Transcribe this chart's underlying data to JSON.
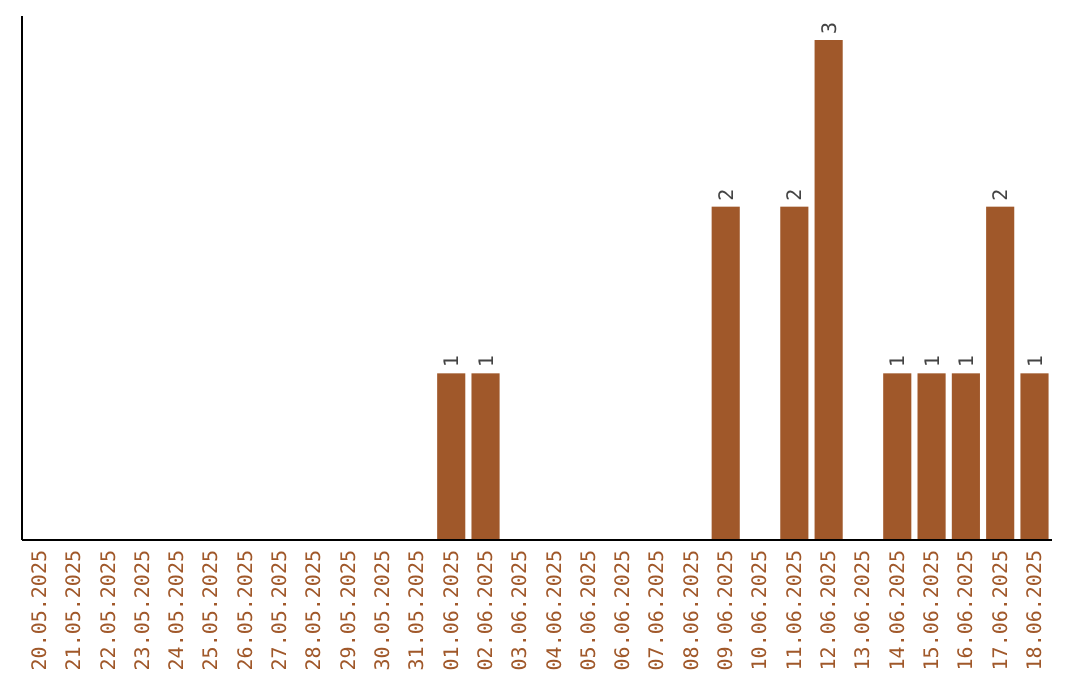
{
  "chart_data": {
    "type": "bar",
    "categories": [
      "20.05.2025",
      "21.05.2025",
      "22.05.2025",
      "23.05.2025",
      "24.05.2025",
      "25.05.2025",
      "26.05.2025",
      "27.05.2025",
      "28.05.2025",
      "29.05.2025",
      "30.05.2025",
      "31.05.2025",
      "01.06.2025",
      "02.06.2025",
      "03.06.2025",
      "04.06.2025",
      "05.06.2025",
      "06.06.2025",
      "07.06.2025",
      "08.06.2025",
      "09.06.2025",
      "10.06.2025",
      "11.06.2025",
      "12.06.2025",
      "13.06.2025",
      "14.06.2025",
      "15.06.2025",
      "16.06.2025",
      "17.06.2025",
      "18.06.2025"
    ],
    "values": [
      null,
      null,
      null,
      null,
      null,
      null,
      null,
      null,
      null,
      null,
      null,
      null,
      1,
      1,
      null,
      null,
      null,
      null,
      null,
      null,
      2,
      null,
      2,
      3,
      null,
      1,
      1,
      1,
      2,
      1
    ],
    "color": "#a0582a",
    "data_labels": true
  }
}
